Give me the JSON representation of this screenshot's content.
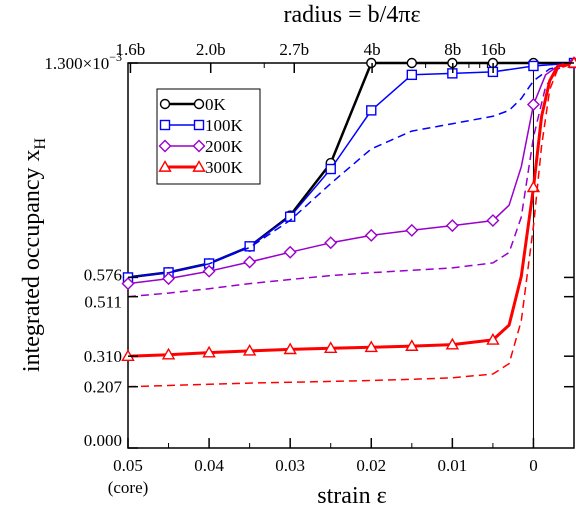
{
  "chart_data": {
    "type": "line",
    "xlabel": "strain ε",
    "ylabel_main": "integrated occupancy x",
    "ylabel_sub": "H",
    "top_axis_title": "radius = b/4πε",
    "xlim": [
      0.05,
      -0.005
    ],
    "ylim": [
      0,
      0.0013
    ],
    "x_ticks": [
      {
        "value": 0.05,
        "label": "0.05",
        "sublabel": "(core)"
      },
      {
        "value": 0.04,
        "label": "0.04"
      },
      {
        "value": 0.03,
        "label": "0.03"
      },
      {
        "value": 0.02,
        "label": "0.02"
      },
      {
        "value": 0.01,
        "label": "0.01"
      },
      {
        "value": 0.0,
        "label": "0"
      }
    ],
    "x_minor_ticks": [
      0.045,
      0.035,
      0.025,
      0.015,
      0.005
    ],
    "top_ticks": [
      {
        "value": 0.0497,
        "label": "1.6b"
      },
      {
        "value": 0.0398,
        "label": "2.0b"
      },
      {
        "value": 0.0295,
        "label": "2.7b"
      },
      {
        "value": 0.0199,
        "label": "4b"
      },
      {
        "value": 0.00995,
        "label": "8b"
      },
      {
        "value": 0.004974,
        "label": "16b"
      }
    ],
    "top_minor_ticks": [
      0.0332,
      0.0133,
      0.00796,
      0.00663,
      0.00568
    ],
    "y_ticks": [
      {
        "value": 0.0,
        "label": "0.000",
        "exp": ""
      },
      {
        "value": 0.000207,
        "label": "0.207",
        "exp": ""
      },
      {
        "value": 0.00031,
        "label": "0.310",
        "exp": ""
      },
      {
        "value": 0.000511,
        "label": "0.511",
        "exp": ""
      },
      {
        "value": 0.000576,
        "label": "0.576",
        "exp": ""
      },
      {
        "value": 0.0013,
        "label": "1.300×10",
        "exp": "−3"
      }
    ],
    "right_ticks": [
      0.0013,
      0.000576,
      0.000511,
      0.00031,
      0.000207
    ],
    "vline_x": 0.0,
    "legend_position": "top-left",
    "series": [
      {
        "name": "0K",
        "color": "#000000",
        "marker": "circle",
        "dashed": false,
        "width": 2.5,
        "x": [
          0.05,
          0.045,
          0.04,
          0.035,
          0.03,
          0.025,
          0.02,
          0.015,
          0.01,
          0.005,
          0.0,
          -0.005
        ],
        "y": [
          0.000576,
          0.000593,
          0.000623,
          0.00068,
          0.000785,
          0.000962,
          0.0013,
          0.0013,
          0.0013,
          0.0013,
          0.0013,
          0.0013
        ],
        "markers_at": [
          0.05,
          0.045,
          0.04,
          0.035,
          0.03,
          0.025,
          0.02,
          0.015,
          0.01,
          0.005,
          0.0
        ]
      },
      {
        "name": "100K",
        "color": "#0000ff",
        "marker": "square",
        "dashed": false,
        "width": 1.5,
        "x": [
          0.05,
          0.045,
          0.04,
          0.035,
          0.03,
          0.025,
          0.02,
          0.015,
          0.01,
          0.005,
          0.0,
          -0.005
        ],
        "y": [
          0.000576,
          0.000593,
          0.000623,
          0.000681,
          0.000781,
          0.000942,
          0.00114,
          0.00126,
          0.001265,
          0.00127,
          0.00129,
          0.0013
        ],
        "markers_at": [
          0.05,
          0.045,
          0.04,
          0.035,
          0.03,
          0.025,
          0.02,
          0.015,
          0.01,
          0.005,
          0.0,
          -0.005
        ]
      },
      {
        "name": "",
        "color": "#0000ff",
        "marker": "none",
        "dashed": true,
        "width": 1.5,
        "x": [
          0.05,
          0.045,
          0.04,
          0.035,
          0.03,
          0.025,
          0.02,
          0.015,
          0.01,
          0.005,
          0.003,
          0.0015,
          0.0,
          -0.002,
          -0.005
        ],
        "y": [
          0.000576,
          0.000592,
          0.000622,
          0.000677,
          0.000769,
          0.000893,
          0.00101,
          0.00107,
          0.001095,
          0.00112,
          0.00114,
          0.00118,
          0.00124,
          0.00128,
          0.0013
        ]
      },
      {
        "name": "200K",
        "color": "#9900cc",
        "marker": "diamond",
        "dashed": false,
        "width": 1.5,
        "x": [
          0.05,
          0.045,
          0.04,
          0.035,
          0.03,
          0.025,
          0.02,
          0.015,
          0.01,
          0.005,
          0.003,
          0.0015,
          0.0,
          -0.0015,
          -0.003,
          -0.005
        ],
        "y": [
          0.000555,
          0.000572,
          0.000597,
          0.000628,
          0.000661,
          0.000693,
          0.000718,
          0.000735,
          0.000751,
          0.000768,
          0.00082,
          0.00095,
          0.00116,
          0.00126,
          0.00129,
          0.0013
        ],
        "markers_at": [
          0.05,
          0.045,
          0.04,
          0.035,
          0.03,
          0.025,
          0.02,
          0.015,
          0.01,
          0.005,
          0.0,
          -0.005
        ]
      },
      {
        "name": "",
        "color": "#9900cc",
        "marker": "none",
        "dashed": true,
        "width": 1.5,
        "x": [
          0.05,
          0.045,
          0.04,
          0.035,
          0.03,
          0.025,
          0.02,
          0.015,
          0.01,
          0.005,
          0.003,
          0.0015,
          0.0,
          -0.0015,
          -0.003,
          -0.005
        ],
        "y": [
          0.000511,
          0.000523,
          0.000538,
          0.000555,
          0.000569,
          0.000582,
          0.000592,
          0.0006,
          0.000608,
          0.000625,
          0.00066,
          0.00078,
          0.00105,
          0.00122,
          0.00128,
          0.0013
        ]
      },
      {
        "name": "300K",
        "color": "#ff0000",
        "marker": "triangle",
        "dashed": false,
        "width": 3,
        "x": [
          0.05,
          0.045,
          0.04,
          0.035,
          0.03,
          0.025,
          0.02,
          0.015,
          0.01,
          0.005,
          0.003,
          0.0015,
          0.0,
          -0.001,
          -0.002,
          -0.003,
          -0.005
        ],
        "y": [
          0.00031,
          0.000315,
          0.000322,
          0.000328,
          0.000333,
          0.000337,
          0.00034,
          0.000344,
          0.000349,
          0.000365,
          0.000415,
          0.00058,
          0.00088,
          0.00112,
          0.00124,
          0.00129,
          0.0013
        ],
        "markers_at": [
          0.05,
          0.045,
          0.04,
          0.035,
          0.03,
          0.025,
          0.02,
          0.015,
          0.01,
          0.005,
          0.0,
          -0.005
        ]
      },
      {
        "name": "",
        "color": "#ff0000",
        "marker": "none",
        "dashed": true,
        "width": 1.5,
        "x": [
          0.05,
          0.045,
          0.04,
          0.035,
          0.03,
          0.025,
          0.02,
          0.015,
          0.01,
          0.005,
          0.003,
          0.0015,
          0.0,
          -0.001,
          -0.002,
          -0.003,
          -0.005
        ],
        "y": [
          0.000207,
          0.000211,
          0.000215,
          0.000219,
          0.000222,
          0.000225,
          0.000228,
          0.000232,
          0.000237,
          0.00025,
          0.000285,
          0.00043,
          0.00075,
          0.00102,
          0.00121,
          0.00128,
          0.0013
        ]
      }
    ]
  }
}
